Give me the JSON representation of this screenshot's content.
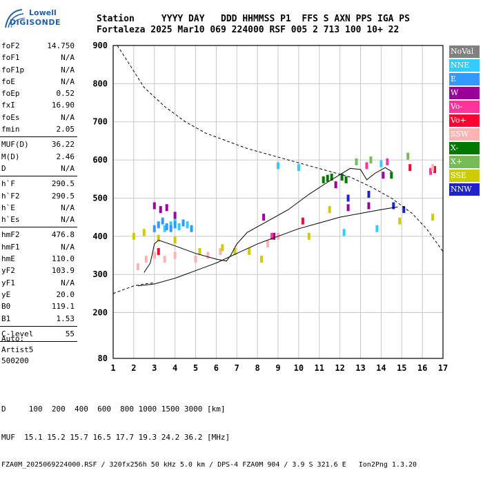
{
  "logo": {
    "top": "Lowell",
    "main": "DIGISONDE"
  },
  "header": {
    "labels_line": "Station     YYYY DAY   DDD HHMMSS P1  FFS S AXN PPS IGA PS",
    "values_line": "Fortaleza 2025 Mar10 069 224000 RSF 005 2 713 100 10+ 22"
  },
  "params": {
    "group1": [
      {
        "name": "foF2",
        "value": "14.750"
      },
      {
        "name": "foF1",
        "value": "N/A"
      },
      {
        "name": "foF1p",
        "value": "N/A"
      },
      {
        "name": "foE",
        "value": "N/A"
      },
      {
        "name": "foEp",
        "value": "0.52"
      },
      {
        "name": "fxI",
        "value": "16.90"
      },
      {
        "name": "foEs",
        "value": "N/A"
      },
      {
        "name": "fmin",
        "value": "2.05"
      }
    ],
    "group2": [
      {
        "name": "MUF(D)",
        "value": "36.22"
      },
      {
        "name": "M(D)",
        "value": "2.46"
      },
      {
        "name": "D",
        "value": "N/A"
      }
    ],
    "group3": [
      {
        "name": "h`F",
        "value": "290.5"
      },
      {
        "name": "h`F2",
        "value": "290.5"
      },
      {
        "name": "h`E",
        "value": "N/A"
      },
      {
        "name": "h`Es",
        "value": "N/A"
      }
    ],
    "group4": [
      {
        "name": "hmF2",
        "value": "476.8"
      },
      {
        "name": "hmF1",
        "value": "N/A"
      },
      {
        "name": "hmE",
        "value": "110.0"
      },
      {
        "name": "yF2",
        "value": "103.9"
      },
      {
        "name": "yF1",
        "value": "N/A"
      },
      {
        "name": "yE",
        "value": "20.0"
      },
      {
        "name": "B0",
        "value": "119.1"
      },
      {
        "name": "B1",
        "value": "1.53"
      }
    ],
    "group5": [
      {
        "name": "C-level",
        "value": "55"
      }
    ]
  },
  "auto": {
    "line1": "Auto:",
    "line2": "Artist5",
    "line3": "500200"
  },
  "legend": [
    {
      "label": "NoVal",
      "color": "#808080"
    },
    {
      "label": "NNE",
      "color": "#33ccff"
    },
    {
      "label": "E",
      "color": "#3399ff"
    },
    {
      "label": "W",
      "color": "#990099"
    },
    {
      "label": "Vo-",
      "color": "#ff3399"
    },
    {
      "label": "Vo+",
      "color": "#ff0033"
    },
    {
      "label": "SSW",
      "color": "#ffb3b3"
    },
    {
      "label": "X-",
      "color": "#007700"
    },
    {
      "label": "X+",
      "color": "#77bb55"
    },
    {
      "label": "SSE",
      "color": "#cccc00"
    },
    {
      "label": "NNW",
      "color": "#2222cc"
    }
  ],
  "footer": {
    "line1": "D     100  200  400  600  800 1000 1500 3000 [km]",
    "line2": "MUF  15.1 15.2 15.7 16.5 17.7 19.3 24.2 36.2 [MHz]",
    "line3": "FZA0M_2025069224000.RSF / 320fx256h 50 kHz 5.0 km / DPS-4 FZA0M 904 / 3.9 S 321.6 E   Ion2Png 1.3.20"
  },
  "chart_data": {
    "type": "scatter",
    "title": "",
    "xlabel": "",
    "ylabel": "",
    "xlim": [
      1,
      17
    ],
    "ylim": [
      80,
      900
    ],
    "x_ticks": [
      1,
      2,
      3,
      4,
      5,
      6,
      7,
      8,
      9,
      10,
      11,
      12,
      13,
      14,
      15,
      16,
      17
    ],
    "y_ticks": [
      80,
      200,
      300,
      400,
      500,
      600,
      700,
      800,
      900
    ],
    "grid": true,
    "legend_position": "right",
    "series": [
      {
        "name": "NNE",
        "values": [
          [
            3.5,
            420
          ],
          [
            3.8,
            430
          ],
          [
            4.0,
            440
          ],
          [
            4.2,
            425
          ],
          [
            4.6,
            430
          ],
          [
            9.0,
            585
          ],
          [
            10.0,
            580
          ],
          [
            12.2,
            410
          ],
          [
            13.8,
            420
          ],
          [
            14.0,
            590
          ]
        ]
      },
      {
        "name": "E",
        "values": [
          [
            3.0,
            420
          ],
          [
            3.2,
            430
          ],
          [
            3.4,
            440
          ],
          [
            3.6,
            425
          ],
          [
            3.8,
            420
          ],
          [
            4.0,
            430
          ],
          [
            4.4,
            435
          ],
          [
            4.8,
            420
          ]
        ]
      },
      {
        "name": "W",
        "values": [
          [
            3.0,
            480
          ],
          [
            3.3,
            470
          ],
          [
            3.6,
            475
          ],
          [
            4.0,
            455
          ],
          [
            8.3,
            450
          ],
          [
            8.8,
            400
          ],
          [
            11.8,
            535
          ],
          [
            12.4,
            475
          ],
          [
            13.4,
            480
          ],
          [
            14.1,
            560
          ]
        ]
      },
      {
        "name": "Vo-",
        "values": [
          [
            3.0,
            350
          ],
          [
            5.0,
            340
          ],
          [
            8.7,
            400
          ],
          [
            13.3,
            585
          ],
          [
            14.3,
            595
          ],
          [
            16.4,
            570
          ]
        ]
      },
      {
        "name": "Vo+",
        "values": [
          [
            3.2,
            360
          ],
          [
            10.2,
            440
          ],
          [
            15.4,
            580
          ],
          [
            16.6,
            575
          ]
        ]
      },
      {
        "name": "SSW",
        "values": [
          [
            2.2,
            320
          ],
          [
            2.6,
            340
          ],
          [
            3.0,
            350
          ],
          [
            3.5,
            340
          ],
          [
            4.0,
            350
          ],
          [
            5.0,
            340
          ],
          [
            5.6,
            350
          ],
          [
            6.2,
            360
          ],
          [
            8.5,
            380
          ],
          [
            9.0,
            400
          ],
          [
            16.5,
            580
          ]
        ]
      },
      {
        "name": "X-",
        "values": [
          [
            11.2,
            548
          ],
          [
            11.4,
            552
          ],
          [
            11.6,
            555
          ],
          [
            12.1,
            555
          ],
          [
            12.3,
            548
          ],
          [
            14.5,
            560
          ]
        ]
      },
      {
        "name": "X+",
        "values": [
          [
            12.8,
            595
          ],
          [
            13.5,
            600
          ],
          [
            15.3,
            610
          ]
        ]
      },
      {
        "name": "SSE",
        "values": [
          [
            2.0,
            400
          ],
          [
            2.5,
            410
          ],
          [
            3.2,
            395
          ],
          [
            4.0,
            390
          ],
          [
            5.2,
            360
          ],
          [
            6.3,
            370
          ],
          [
            6.9,
            360
          ],
          [
            7.6,
            360
          ],
          [
            8.2,
            340
          ],
          [
            10.5,
            400
          ],
          [
            11.5,
            470
          ],
          [
            14.9,
            440
          ],
          [
            16.5,
            450
          ]
        ]
      },
      {
        "name": "NNW",
        "values": [
          [
            12.4,
            500
          ],
          [
            13.4,
            510
          ],
          [
            14.6,
            480
          ],
          [
            15.1,
            470
          ]
        ]
      }
    ],
    "curves": {
      "mup_dashed": [
        [
          1.2,
          900
        ],
        [
          1.8,
          850
        ],
        [
          2.5,
          790
        ],
        [
          3.5,
          740
        ],
        [
          4.5,
          700
        ],
        [
          5.5,
          670
        ],
        [
          6.5,
          650
        ],
        [
          7.5,
          630
        ],
        [
          8.5,
          615
        ],
        [
          9.5,
          600
        ],
        [
          10.5,
          585
        ],
        [
          11.5,
          570
        ],
        [
          12.5,
          555
        ],
        [
          13.5,
          530
        ],
        [
          14.5,
          500
        ],
        [
          15.5,
          460
        ],
        [
          16.2,
          420
        ],
        [
          17,
          360
        ]
      ],
      "lower_dashed": [
        [
          1,
          250
        ],
        [
          1.5,
          260
        ],
        [
          2.0,
          270
        ],
        [
          2.5,
          275
        ],
        [
          3.0,
          278
        ]
      ],
      "profile_upper": [
        [
          2.5,
          305
        ],
        [
          2.8,
          330
        ],
        [
          3.0,
          380
        ],
        [
          3.2,
          390
        ],
        [
          4.0,
          375
        ],
        [
          5.0,
          355
        ],
        [
          6.0,
          340
        ],
        [
          6.5,
          335
        ],
        [
          6.7,
          350
        ],
        [
          7.0,
          380
        ],
        [
          7.5,
          410
        ],
        [
          8.5,
          440
        ],
        [
          9.5,
          470
        ],
        [
          10.5,
          510
        ],
        [
          11.5,
          545
        ],
        [
          12.5,
          578
        ],
        [
          13.0,
          575
        ],
        [
          13.3,
          548
        ],
        [
          13.7,
          565
        ],
        [
          14.2,
          580
        ],
        [
          14.5,
          570
        ]
      ],
      "profile_lower": [
        [
          2.2,
          270
        ],
        [
          3.0,
          275
        ],
        [
          4.0,
          290
        ],
        [
          5.0,
          310
        ],
        [
          6.0,
          330
        ],
        [
          7.0,
          355
        ],
        [
          8.0,
          380
        ],
        [
          9.0,
          400
        ],
        [
          10.0,
          420
        ],
        [
          11.0,
          435
        ],
        [
          12.0,
          450
        ],
        [
          13.0,
          460
        ],
        [
          14.0,
          470
        ],
        [
          14.8,
          477
        ]
      ]
    }
  }
}
